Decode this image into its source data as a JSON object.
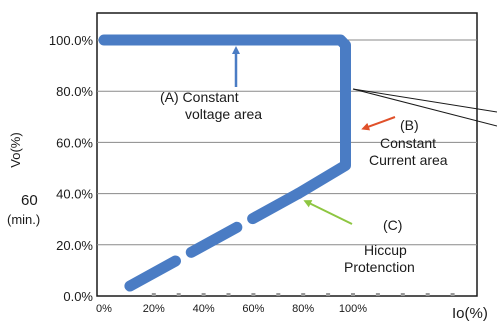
{
  "chart_data": {
    "type": "line",
    "title": "",
    "xlabel": "Io(%)",
    "ylabel": "Vo(%)",
    "x_tick_labels": [
      "0%",
      "20%",
      "40%",
      "60%",
      "80%",
      "100%"
    ],
    "y_tick_labels": [
      "0.0%",
      "20.0%",
      "40.0%",
      "60.0%",
      "80.0%",
      "100.0%"
    ],
    "xlim": [
      0,
      140
    ],
    "ylim": [
      0,
      110
    ],
    "grid": true,
    "y_extra_label": {
      "value": "60",
      "sub": "(min.)",
      "y": 40
    },
    "series": [
      {
        "name": "",
        "style": "solid",
        "color": "#4a7cc4",
        "points": [
          [
            0,
            100
          ],
          [
            95,
            100
          ],
          [
            97,
            98
          ],
          [
            97,
            51
          ],
          [
            78,
            40
          ]
        ]
      },
      {
        "name": "",
        "style": "dashed",
        "color": "#4a7cc4",
        "points": [
          [
            78,
            40
          ],
          [
            5,
            1
          ]
        ]
      }
    ],
    "annotations": [
      {
        "id": "a",
        "lines": [
          "(A) Constant",
          "voltage area"
        ],
        "arrow_color": "#4a7cc4"
      },
      {
        "id": "b",
        "lines": [
          "(B)",
          "Constant",
          "Current area"
        ],
        "arrow_color": "#e0502a"
      },
      {
        "id": "c",
        "lines": [
          "(C)",
          "Hiccup",
          "Protenction"
        ],
        "arrow_color": "#8ec641"
      }
    ]
  }
}
